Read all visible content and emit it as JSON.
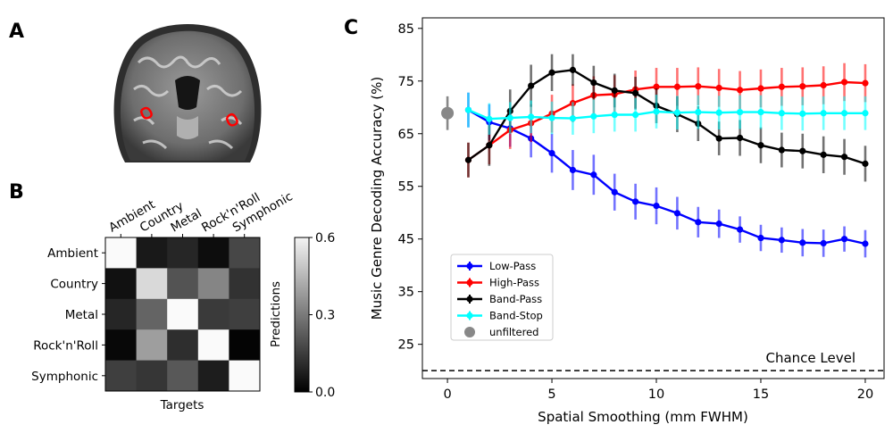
{
  "panel_labels": [
    "A",
    "B",
    "C"
  ],
  "confusion_matrix": {
    "row_labels": [
      "Ambient",
      "Country",
      "Metal",
      "Rock'n'Roll",
      "Symphonic"
    ],
    "col_labels": [
      "Ambient",
      "Country",
      "Metal",
      "Rock'n'Roll",
      "Symphonic"
    ],
    "xlabel": "Targets",
    "colorbar_label": "Predictions",
    "colorbar_ticks": [
      "0.6",
      "0.3",
      "0.0"
    ],
    "vmin": 0.0,
    "vmax": 0.6,
    "values": [
      [
        0.6,
        0.06,
        0.09,
        0.03,
        0.17
      ],
      [
        0.04,
        0.52,
        0.2,
        0.32,
        0.12
      ],
      [
        0.09,
        0.24,
        0.6,
        0.14,
        0.15
      ],
      [
        0.02,
        0.38,
        0.11,
        0.6,
        0.01
      ],
      [
        0.15,
        0.13,
        0.21,
        0.07,
        0.6
      ]
    ]
  },
  "chart_data": {
    "type": "line",
    "xlabel": "Spatial Smoothing (mm FWHM)",
    "ylabel": "Music Genre Decoding Accuracy (%)",
    "xlim": [
      -1.2,
      20.9
    ],
    "ylim": [
      18.5,
      87
    ],
    "xticks": [
      0,
      5,
      10,
      15,
      20
    ],
    "yticks": [
      25,
      35,
      45,
      55,
      65,
      75,
      85
    ],
    "x": [
      1,
      2,
      3,
      4,
      5,
      6,
      7,
      8,
      9,
      10,
      11,
      12,
      13,
      14,
      15,
      16,
      17,
      18,
      19,
      20
    ],
    "series": [
      {
        "name": "Low-Pass",
        "color": "#0000ff",
        "values": [
          69.5,
          67.2,
          66.0,
          64.1,
          61.3,
          58.1,
          57.2,
          53.9,
          52.1,
          51.3,
          49.9,
          48.2,
          47.9,
          46.8,
          45.2,
          44.8,
          44.3,
          44.2,
          45.0,
          44.1
        ],
        "err": [
          3.3,
          3.4,
          3.5,
          3.6,
          3.7,
          3.8,
          3.8,
          3.5,
          3.4,
          3.5,
          3.1,
          2.9,
          2.7,
          2.5,
          2.5,
          2.4,
          2.6,
          2.6,
          2.4,
          2.6
        ]
      },
      {
        "name": "High-Pass",
        "color": "#ff0000",
        "values": [
          60.0,
          62.8,
          65.7,
          67.0,
          68.8,
          70.8,
          72.3,
          72.5,
          73.4,
          73.9,
          73.9,
          74.0,
          73.7,
          73.3,
          73.6,
          73.9,
          74.0,
          74.2,
          74.8,
          74.6
        ],
        "err": [
          3.3,
          3.6,
          3.6,
          3.6,
          3.6,
          3.6,
          3.6,
          3.6,
          3.6,
          3.6,
          3.6,
          3.6,
          3.6,
          3.6,
          3.6,
          3.6,
          3.6,
          3.6,
          3.6,
          3.6
        ]
      },
      {
        "name": "Band-Pass",
        "color": "#000000",
        "values": [
          60.0,
          62.8,
          69.3,
          74.1,
          76.6,
          77.1,
          74.7,
          73.2,
          72.7,
          70.3,
          68.7,
          66.9,
          64.1,
          64.2,
          62.8,
          61.9,
          61.7,
          61.0,
          60.6,
          59.3
        ],
        "err": [
          3.3,
          3.9,
          4.1,
          4.0,
          3.5,
          3.0,
          3.2,
          3.2,
          3.1,
          3.3,
          3.4,
          3.3,
          3.2,
          3.4,
          3.4,
          3.3,
          3.3,
          3.5,
          3.4,
          3.4
        ]
      },
      {
        "name": "Band-Stop",
        "color": "#00ffff",
        "values": [
          69.5,
          67.8,
          68.0,
          68.2,
          68.0,
          67.9,
          68.3,
          68.6,
          68.6,
          69.2,
          69.0,
          69.1,
          69.0,
          69.1,
          69.1,
          68.9,
          68.8,
          68.9,
          68.9,
          68.9
        ],
        "err": [
          3.3,
          3.0,
          3.0,
          3.1,
          3.1,
          3.1,
          3.2,
          3.2,
          3.2,
          3.2,
          3.2,
          3.2,
          3.2,
          3.2,
          3.2,
          3.2,
          3.2,
          3.2,
          3.2,
          3.2
        ]
      }
    ],
    "unfiltered": {
      "name": "unfiltered",
      "x": 0,
      "value": 68.9,
      "err": 3.2,
      "color": "#888888"
    },
    "chance_level": {
      "label": "Chance Level",
      "value": 20.0
    }
  }
}
